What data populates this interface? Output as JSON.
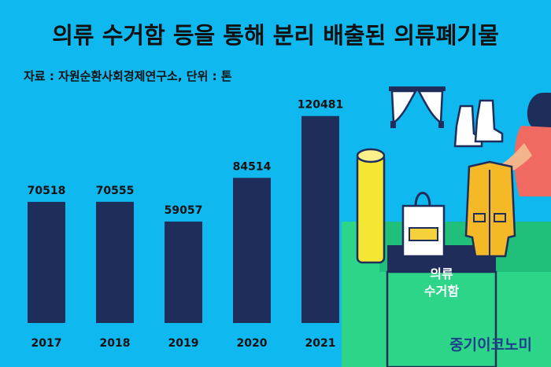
{
  "header": {
    "title": "의류 수거함 등을 통해 분리 배출된 의류폐기물",
    "source": "자료 : 자원순환사회경제연구소, 단위 : 톤"
  },
  "illustration": {
    "bin_label_line1": "의류",
    "bin_label_line2": "수거함",
    "bin_color": "#2cd587",
    "icons": [
      "curtain-icon",
      "boots-icon",
      "rolled-mat-icon",
      "tote-bag-icon",
      "jacket-icon",
      "person-icon",
      "clothing-bin-icon"
    ]
  },
  "brand": "중기이코노미",
  "colors": {
    "background": "#10b8f0",
    "bar": "#1e2d5a"
  },
  "chart_data": {
    "type": "bar",
    "title": "의류 수거함 등을 통해 분리 배출된 의류폐기물",
    "categories": [
      "2017",
      "2018",
      "2019",
      "2020",
      "2021"
    ],
    "values": [
      70518,
      70555,
      59057,
      84514,
      120481
    ],
    "ylabel": "톤",
    "ylim": [
      0,
      124000
    ],
    "grid": false
  }
}
